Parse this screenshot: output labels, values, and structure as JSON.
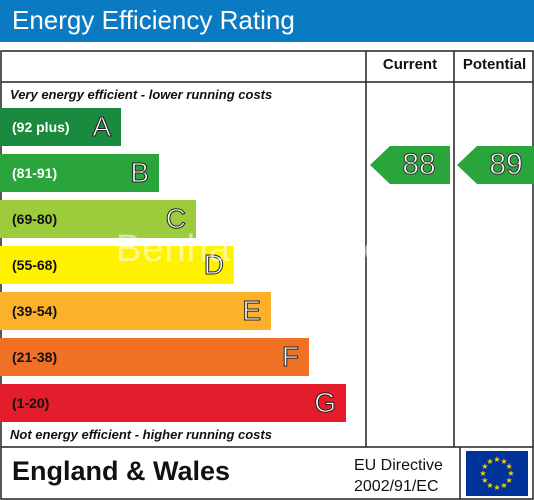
{
  "title": "Energy Efficiency Rating",
  "headers": {
    "current": "Current",
    "potential": "Potential"
  },
  "notes": {
    "top": "Very energy efficient - lower running costs",
    "bottom": "Not energy efficient - higher running costs"
  },
  "watermark": "Benham & Reeves",
  "chart_data": {
    "type": "bar",
    "title": "Energy Efficiency Rating",
    "categories": [
      "A",
      "B",
      "C",
      "D",
      "E",
      "F",
      "G"
    ],
    "bands": [
      {
        "letter": "A",
        "range": "(92 plus)",
        "color": "#1a8a3e",
        "text_color": "#ffffff"
      },
      {
        "letter": "B",
        "range": "(81-91)",
        "color": "#2aa53c",
        "text_color": "#ffffff"
      },
      {
        "letter": "C",
        "range": "(69-80)",
        "color": "#9ccb3b",
        "text_color": "#111111"
      },
      {
        "letter": "D",
        "range": "(55-68)",
        "color": "#fff200",
        "text_color": "#111111"
      },
      {
        "letter": "E",
        "range": "(39-54)",
        "color": "#fbb12a",
        "text_color": "#111111"
      },
      {
        "letter": "F",
        "range": "(21-38)",
        "color": "#f07125",
        "text_color": "#111111"
      },
      {
        "letter": "G",
        "range": "(1-20)",
        "color": "#e31d2b",
        "text_color": "#111111"
      }
    ],
    "current": {
      "value": 88,
      "band": "B",
      "color": "#2aa53c"
    },
    "potential": {
      "value": 89,
      "band": "B",
      "color": "#2aa53c"
    }
  },
  "footer": {
    "country": "England & Wales",
    "directive_line1": "EU Directive",
    "directive_line2": "2002/91/EC"
  },
  "flag": {
    "background": "#003399",
    "stars": "#ffcc00"
  }
}
